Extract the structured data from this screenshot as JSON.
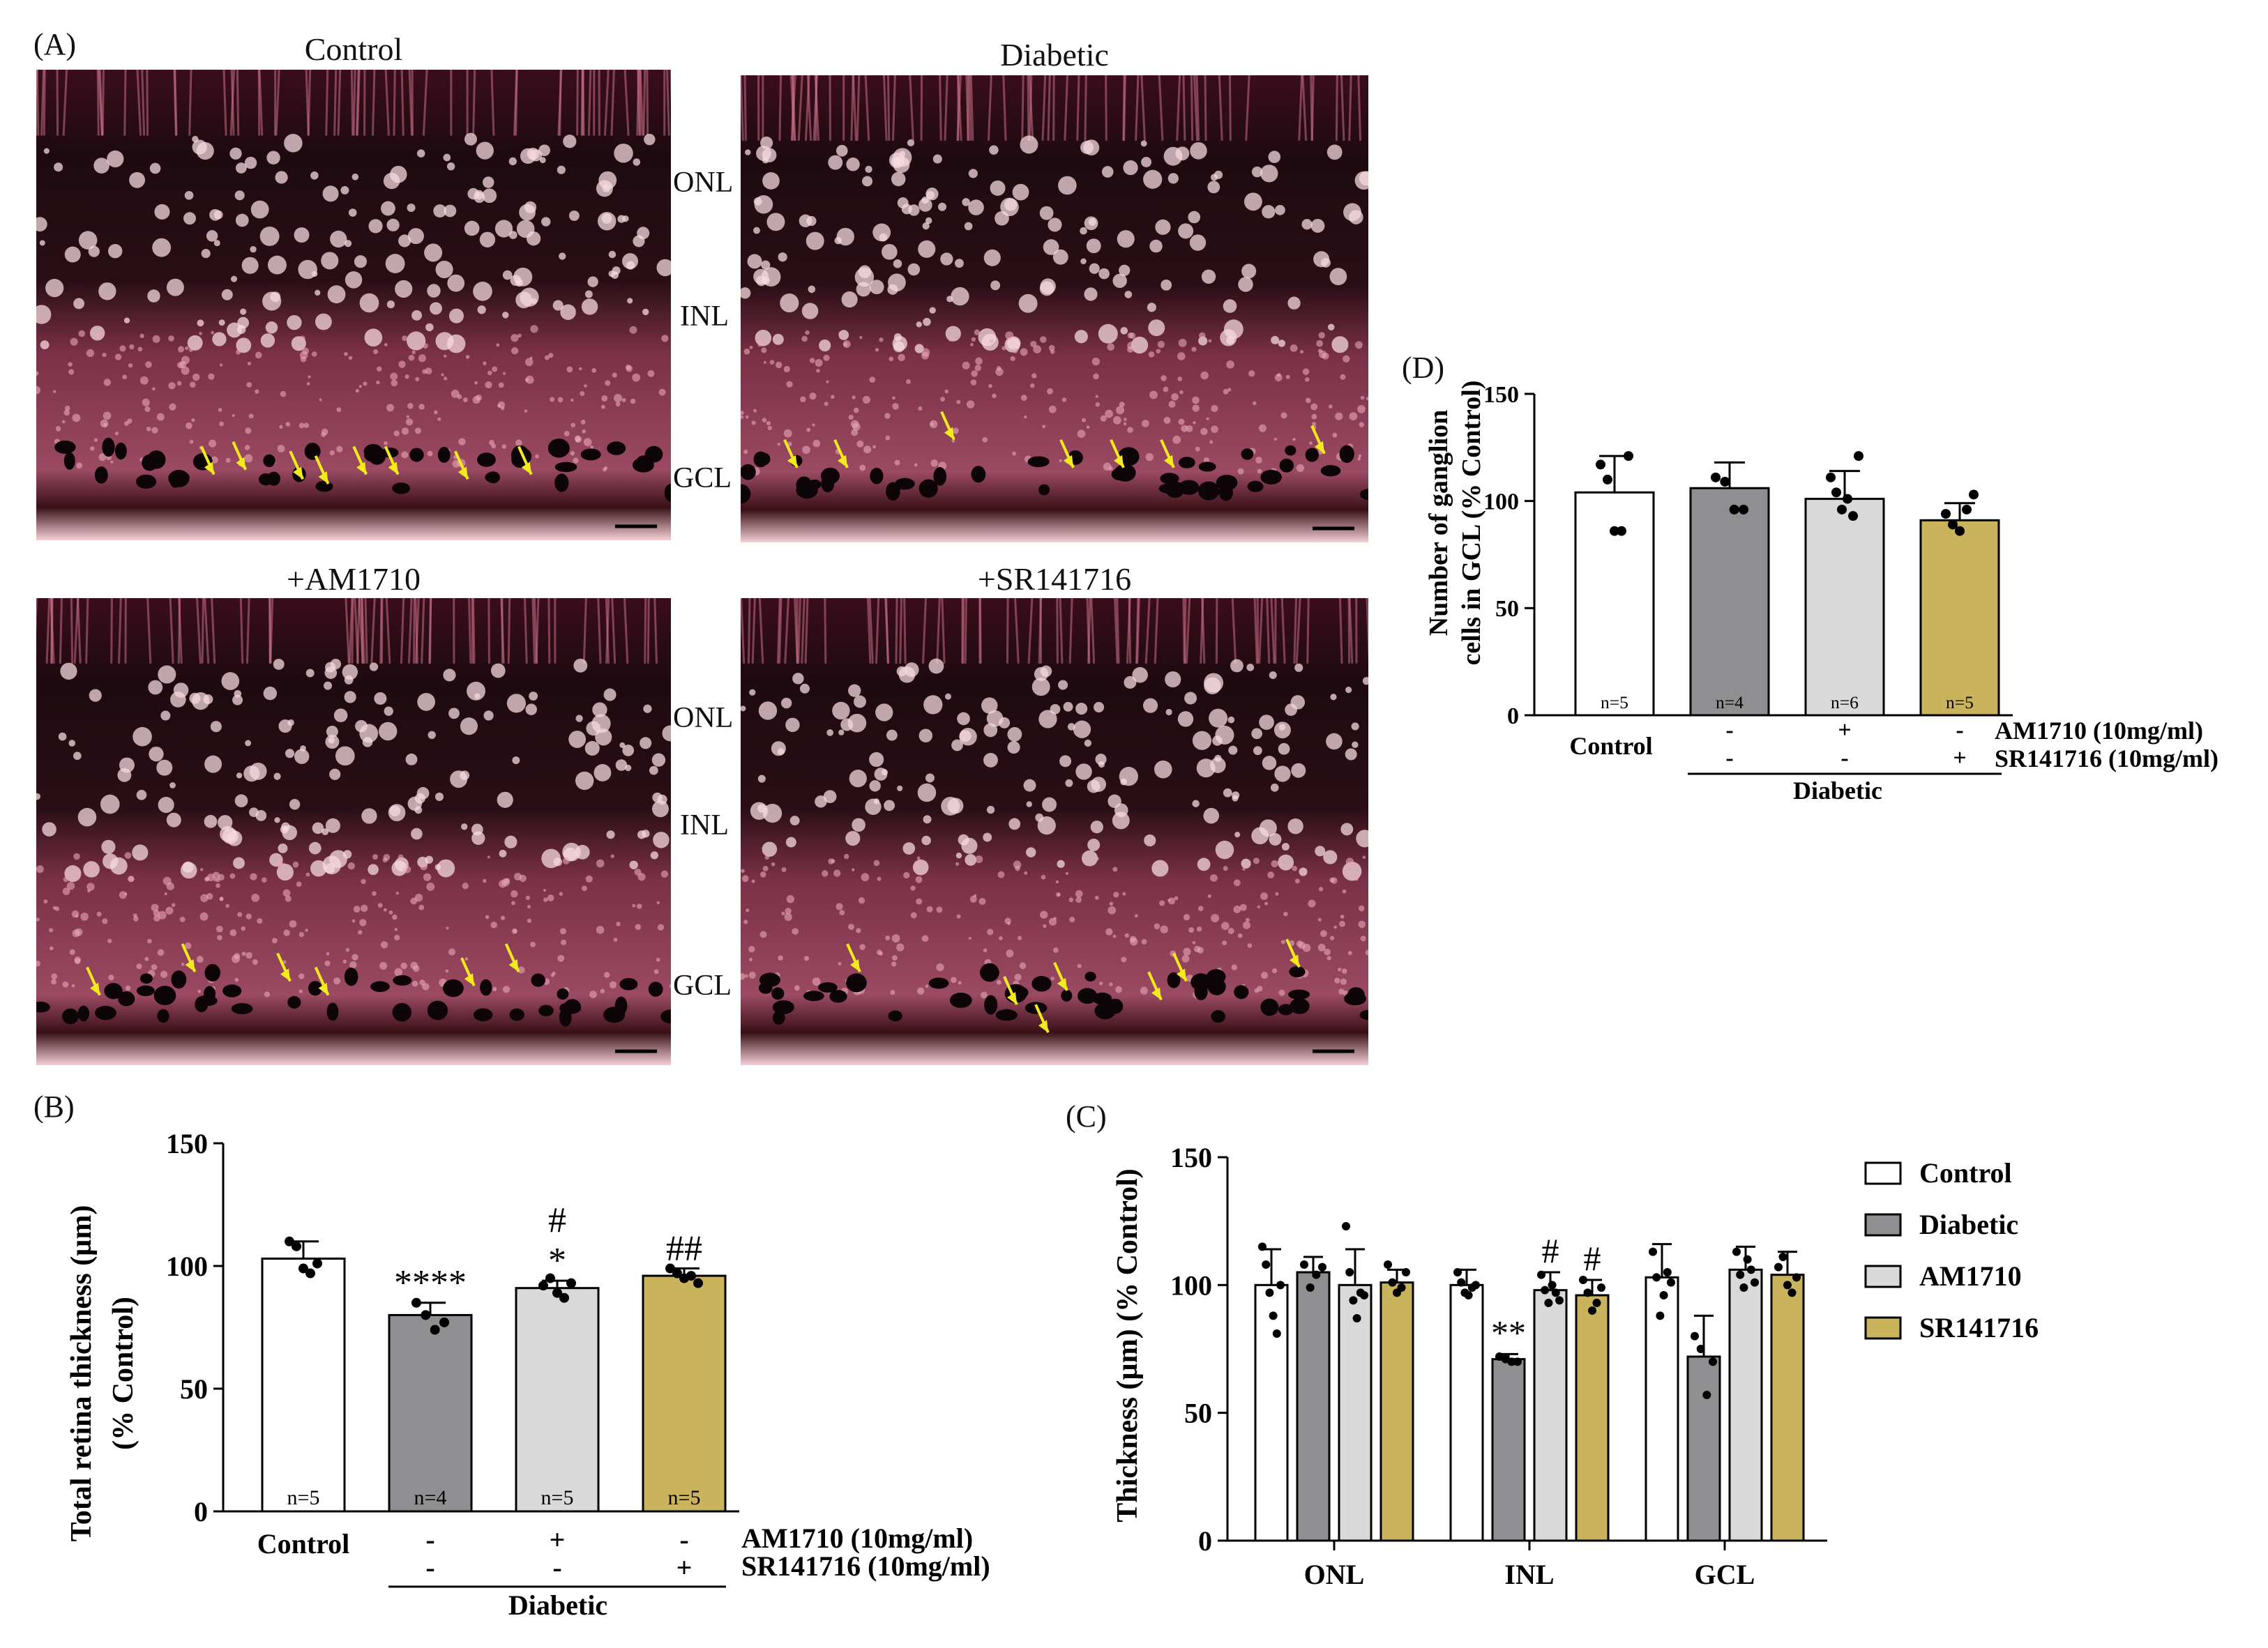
{
  "panel_labels": {
    "A": "(A)",
    "B": "(B)",
    "C": "(C)",
    "D": "(D)"
  },
  "micrographs": {
    "titles": [
      "Control",
      "Diabetic",
      "+AM1710",
      "+SR141716"
    ],
    "layers": [
      "ONL",
      "INL",
      "GCL"
    ]
  },
  "colors": {
    "control": "#ffffff",
    "diabetic": "#8f8f92",
    "am1710": "#d9d9d9",
    "sr141716": "#c9b35c",
    "tissue_dark": "#1a0a0e",
    "tissue_stain": "#b8506a",
    "tissue_light": "#f6d9df",
    "arrow": "#f2ea1c"
  },
  "treatments": {
    "am_label": "AM1710 (10mg/ml)",
    "sr_label": "SR141716 (10mg/ml)",
    "am_signs": [
      "-",
      "+",
      "-"
    ],
    "sr_signs": [
      "-",
      "-",
      "+"
    ],
    "control_label": "Control",
    "diabetic_label": "Diabetic"
  },
  "chart_data": [
    {
      "panel": "B",
      "type": "bar",
      "categories": [
        "Control",
        "Diabetic",
        "+AM1710",
        "+SR141716"
      ],
      "values": [
        103,
        80,
        91,
        96
      ],
      "errors": [
        7,
        5,
        3,
        3
      ],
      "points": [
        [
          110,
          108,
          99,
          97,
          101
        ],
        [
          85,
          80,
          74,
          77
        ],
        [
          92,
          95,
          89,
          87,
          93
        ],
        [
          99,
          97,
          95,
          96,
          93
        ]
      ],
      "n_labels": [
        "n=5",
        "n=4",
        "n=5",
        "n=5"
      ],
      "significance": [
        [],
        [
          "****"
        ],
        [
          "#",
          "*"
        ],
        [
          "##"
        ]
      ],
      "ylabel": "Total retina thickness (µm)",
      "ylabel2": "(% Control)",
      "ylim": [
        0,
        150
      ],
      "yticks": [
        0,
        50,
        100,
        150
      ]
    },
    {
      "panel": "C",
      "type": "bar",
      "categories": [
        "ONL",
        "INL",
        "GCL"
      ],
      "series": [
        {
          "name": "Control",
          "values": [
            100,
            100,
            103
          ],
          "errors": [
            14,
            6,
            13
          ],
          "points": [
            [
              115,
              108,
              97,
              88,
              81,
              100
            ],
            [
              105,
              101,
              97,
              96,
              99,
              100
            ],
            [
              113,
              103,
              88,
              96,
              105,
              101
            ]
          ]
        },
        {
          "name": "Diabetic",
          "values": [
            105,
            71,
            72
          ],
          "errors": [
            6,
            2,
            16
          ],
          "points": [
            [
              108,
              99,
              104,
              107
            ],
            [
              72,
              71,
              70,
              70
            ],
            [
              80,
              75,
              57,
              70
            ]
          ]
        },
        {
          "name": "AM1710",
          "values": [
            100,
            98,
            106
          ],
          "errors": [
            14,
            7,
            9
          ],
          "points": [
            [
              123,
              105,
              94,
              87,
              97,
              96
            ],
            [
              104,
              98,
              93,
              100,
              97,
              94
            ],
            [
              113,
              104,
              99,
              110,
              106,
              101
            ]
          ]
        },
        {
          "name": "SR141716",
          "values": [
            101,
            96,
            104
          ],
          "errors": [
            5,
            6,
            9
          ],
          "points": [
            [
              108,
              101,
              97,
              99,
              105
            ],
            [
              102,
              97,
              90,
              93,
              99
            ],
            [
              107,
              111,
              100,
              97,
              103
            ]
          ]
        }
      ],
      "significance": [
        [
          [],
          [],
          [],
          []
        ],
        [
          [],
          [
            "**"
          ],
          [
            "#"
          ],
          [
            "#"
          ]
        ],
        [
          [],
          [],
          [],
          []
        ]
      ],
      "ylabel": "Thickness (µm) (% Control)",
      "ylim": [
        0,
        150
      ],
      "yticks": [
        0,
        50,
        100,
        150
      ],
      "legend": "right"
    },
    {
      "panel": "D",
      "type": "bar",
      "categories": [
        "Control",
        "Diabetic",
        "+AM1710",
        "+SR141716"
      ],
      "values": [
        104,
        106,
        101,
        91
      ],
      "errors": [
        17,
        12,
        13,
        8
      ],
      "points": [
        [
          117,
          110,
          86,
          86,
          121
        ],
        [
          111,
          109,
          96,
          96
        ],
        [
          111,
          104,
          96,
          101,
          93,
          121
        ],
        [
          94,
          89,
          86,
          96,
          103
        ]
      ],
      "n_labels": [
        "n=5",
        "n=4",
        "n=6",
        "n=5"
      ],
      "significance": [
        [],
        [],
        [],
        []
      ],
      "ylabel": "Number of ganglion",
      "ylabel2": "cells in GCL (% Control)",
      "ylim": [
        0,
        150
      ],
      "yticks": [
        0,
        50,
        100,
        150
      ]
    }
  ]
}
